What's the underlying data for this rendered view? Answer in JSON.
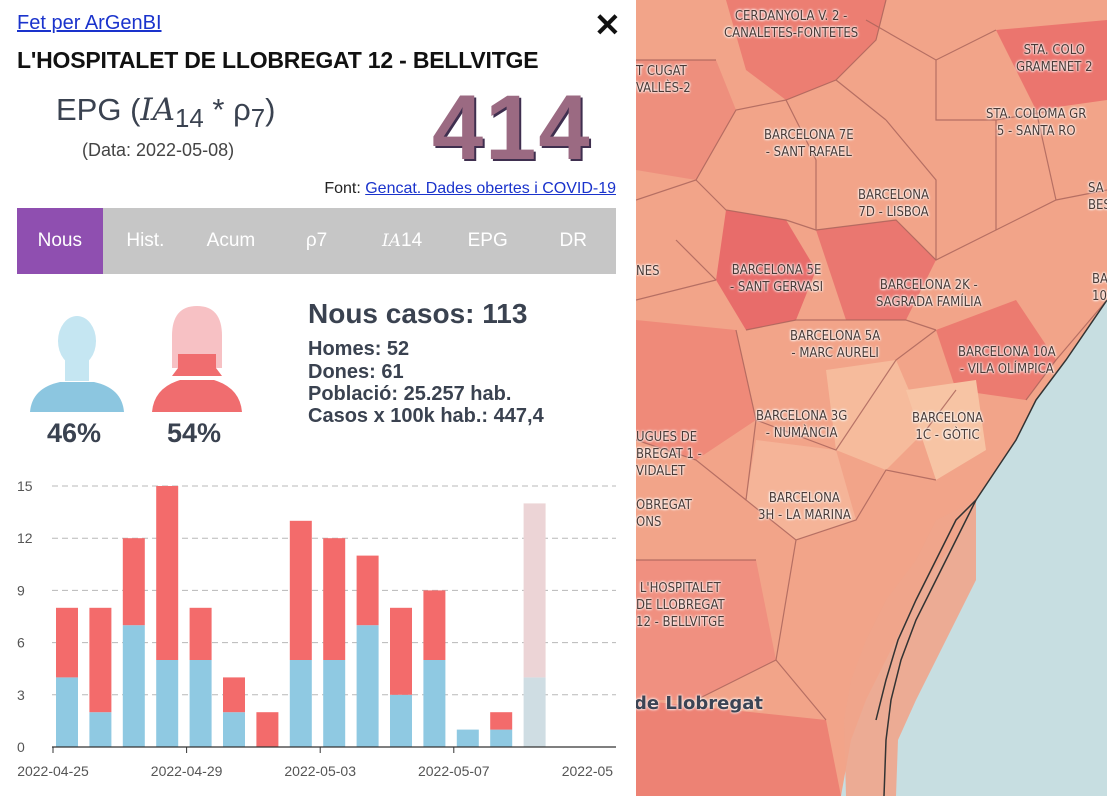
{
  "header": {
    "made_by": "Fet per ArGenBI",
    "area_title": "L'HOSPITALET DE LLOBREGAT 12 - BELLVITGE",
    "epg_label_prefix": "EPG (",
    "epg_ia": "IA",
    "epg_ia_sub": "14",
    "epg_rho": " * ρ",
    "epg_rho_sub": "7",
    "epg_suffix": ")",
    "data_date": "(Data: 2022-05-08)",
    "epg_value": "414",
    "source_prefix": "Font: ",
    "source_link": "Gencat. Dades obertes i COVID-19"
  },
  "tabs": [
    {
      "label": "Nous",
      "active": true
    },
    {
      "label": "Hist."
    },
    {
      "label": "Acum"
    },
    {
      "label": "ρ7"
    },
    {
      "label_ia": "IA",
      "label_rest": "14"
    },
    {
      "label": "EPG"
    },
    {
      "label": "DR"
    }
  ],
  "stats": {
    "men_pct": "46%",
    "women_pct": "54%",
    "new_cases": "Nous casos: 113",
    "men": "Homes: 52",
    "women": "Dones: 61",
    "population": "Població: 25.257 hab.",
    "rate": "Casos x 100k hab.: 447,4"
  },
  "chart_data": {
    "type": "bar",
    "stacked": true,
    "ylim": [
      0,
      15
    ],
    "yticks": [
      0,
      3,
      6,
      9,
      12,
      15
    ],
    "xtick_labels": [
      "2022-04-25",
      "2022-04-29",
      "2022-05-03",
      "2022-05-07",
      "2022-05"
    ],
    "x": [
      "2022-04-25",
      "2022-04-26",
      "2022-04-27",
      "2022-04-28",
      "2022-04-29",
      "2022-04-30",
      "2022-05-01",
      "2022-05-02",
      "2022-05-03",
      "2022-05-04",
      "2022-05-05",
      "2022-05-06",
      "2022-05-07",
      "2022-05-08",
      "2022-05-09"
    ],
    "series": [
      {
        "values": [
          4,
          2,
          7,
          5,
          5,
          2,
          0,
          5,
          5,
          7,
          3,
          5,
          1,
          1,
          4
        ],
        "color": "#8fc9e2",
        "faded_color": "#cfdde3"
      },
      {
        "values": [
          4,
          6,
          5,
          10,
          3,
          2,
          2,
          8,
          7,
          4,
          5,
          4,
          0,
          1,
          10
        ],
        "color": "#f36b6b",
        "faded_color": "#ecd4d6"
      }
    ],
    "faded_last": true,
    "grid": true
  },
  "map": {
    "labels": [
      {
        "text": "CERDANYOLA V. 2 -\nCANALETES-FONTETES"
      },
      {
        "text": "STA. COLO\nGRAMENET 2"
      },
      {
        "text": "T CUGAT\nVALLÈS-2"
      },
      {
        "text": "STA. COLOMA GR\n5 - SANTA RO"
      },
      {
        "text": "BARCELONA 7E\n- SANT RAFAEL"
      },
      {
        "text": "BARCELONA\n7D - LISBOA"
      },
      {
        "text": "SA\nBES"
      },
      {
        "text": "NES"
      },
      {
        "text": "BARCELONA 5E\n- SANT GERVASI"
      },
      {
        "text": "BARCELONA 2K -\nSAGRADA FAMÍLIA"
      },
      {
        "text": "BA\n10"
      },
      {
        "text": "BARCELONA 5A\n- MARC AURELI"
      },
      {
        "text": "BARCELONA 10A\n- VILA OLÍMPICA"
      },
      {
        "text": "BARCELONA 3G\n- NUMÀNCIA"
      },
      {
        "text": "BARCELONA\n1C - GÒTIC"
      },
      {
        "text": "UGUES DE\nBREGAT 1 -\nVIDALET"
      },
      {
        "text": "BARCELONA\n3H - LA MARINA"
      },
      {
        "text": "OBREGAT\nONS"
      },
      {
        "text": "L'HOSPITALET\nDE LLOBREGAT\n12 - BELLVITGE"
      }
    ],
    "city_label": "de Llobregat"
  }
}
